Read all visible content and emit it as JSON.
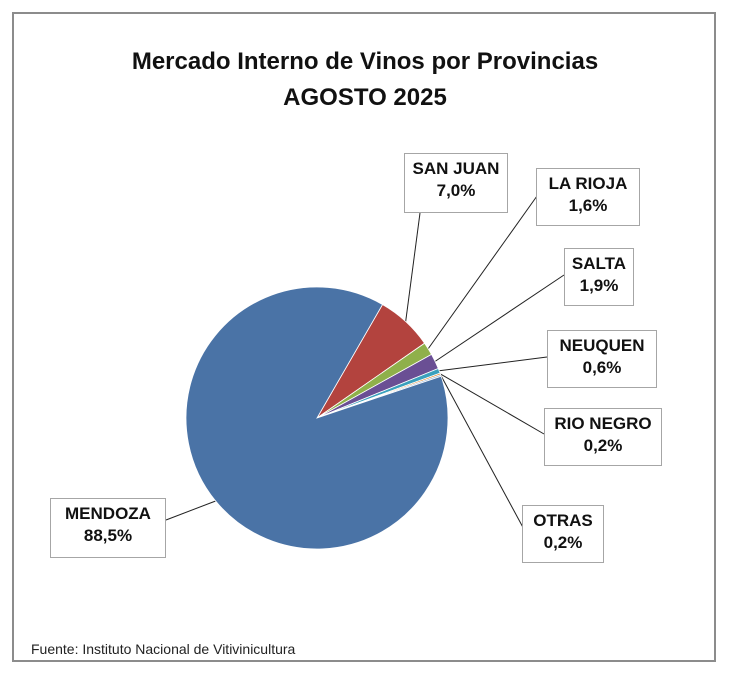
{
  "chart_data": {
    "type": "pie",
    "title_line1": "Mercado Interno de Vinos por Provincias",
    "title_line2": "AGOSTO 2025",
    "slices": [
      {
        "name": "MENDOZA",
        "value": 88.5,
        "label": "88,5%",
        "color": "#4a73a6"
      },
      {
        "name": "SAN JUAN",
        "value": 7.0,
        "label": "7,0%",
        "color": "#b3433e"
      },
      {
        "name": "LA RIOJA",
        "value": 1.6,
        "label": "1,6%",
        "color": "#8fb04a"
      },
      {
        "name": "SALTA",
        "value": 1.9,
        "label": "1,9%",
        "color": "#6a4f94"
      },
      {
        "name": "NEUQUEN",
        "value": 0.6,
        "label": "0,6%",
        "color": "#3aa0bd"
      },
      {
        "name": "RIO NEGRO",
        "value": 0.2,
        "label": "0,2%",
        "color": "#e0892f"
      },
      {
        "name": "OTRAS",
        "value": 0.2,
        "label": "0,2%",
        "color": "#9ab8dc"
      }
    ],
    "source": "Fuente: Instituto Nacional de Vitivinicultura"
  }
}
